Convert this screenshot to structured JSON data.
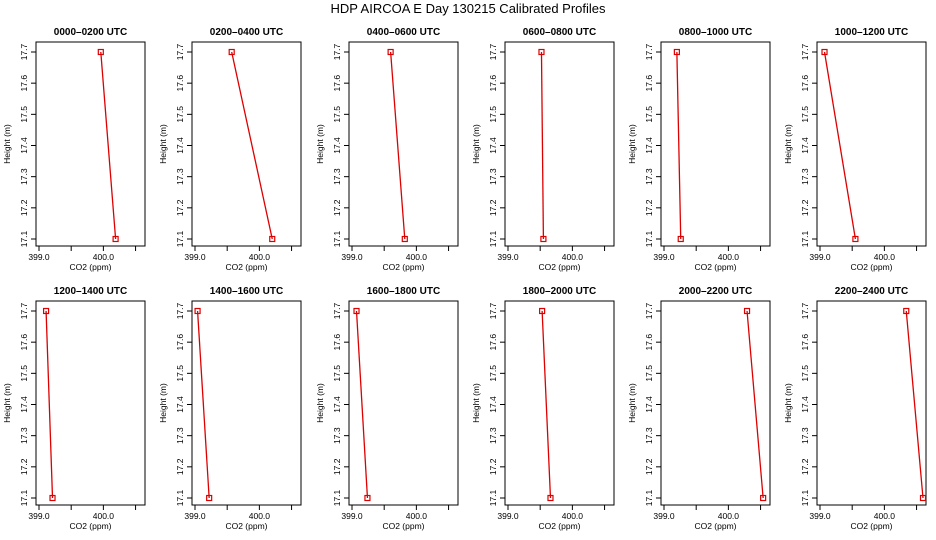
{
  "title": "HDP AIRCOA E  Day 130215  Calibrated Profiles",
  "colors": {
    "line": "#dd0000",
    "point": "#dd0000",
    "axis": "#000000"
  },
  "chart_data": [
    {
      "type": "line",
      "title": "0000–0200 UTC",
      "xlabel": "CO2 (ppm)",
      "ylabel": "Height (m)",
      "xlim": [
        399.0,
        400.6
      ],
      "ylim": [
        17.1,
        17.7
      ],
      "xticks": [
        399.0,
        400.0
      ],
      "xtick_labels": [
        "399.0",
        "400.0"
      ],
      "yticks": [
        17.1,
        17.2,
        17.3,
        17.4,
        17.5,
        17.6,
        17.7
      ],
      "ytick_labels": [
        "17.1",
        "17.2",
        "17.3",
        "17.4",
        "17.5",
        "17.6",
        "17.7"
      ],
      "series": [
        {
          "points": [
            {
              "x": 399.96,
              "y": 17.7
            },
            {
              "x": 400.19,
              "y": 17.1
            }
          ]
        }
      ]
    },
    {
      "type": "line",
      "title": "0200–0400 UTC",
      "xlabel": "CO2 (ppm)",
      "ylabel": "Height (m)",
      "xlim": [
        399.0,
        400.6
      ],
      "ylim": [
        17.1,
        17.7
      ],
      "xticks": [
        399.0,
        400.0
      ],
      "xtick_labels": [
        "399.0",
        "400.0"
      ],
      "yticks": [
        17.1,
        17.2,
        17.3,
        17.4,
        17.5,
        17.6,
        17.7
      ],
      "ytick_labels": [
        "17.1",
        "17.2",
        "17.3",
        "17.4",
        "17.5",
        "17.6",
        "17.7"
      ],
      "series": [
        {
          "points": [
            {
              "x": 399.57,
              "y": 17.7
            },
            {
              "x": 400.2,
              "y": 17.1
            }
          ]
        }
      ]
    },
    {
      "type": "line",
      "title": "0400–0600 UTC",
      "xlabel": "CO2 (ppm)",
      "ylabel": "Height (m)",
      "xlim": [
        399.0,
        400.6
      ],
      "ylim": [
        17.1,
        17.7
      ],
      "xticks": [
        399.0,
        400.0
      ],
      "xtick_labels": [
        "399.0",
        "400.0"
      ],
      "yticks": [
        17.1,
        17.2,
        17.3,
        17.4,
        17.5,
        17.6,
        17.7
      ],
      "ytick_labels": [
        "17.1",
        "17.2",
        "17.3",
        "17.4",
        "17.5",
        "17.6",
        "17.7"
      ],
      "series": [
        {
          "points": [
            {
              "x": 399.6,
              "y": 17.7
            },
            {
              "x": 399.82,
              "y": 17.1
            }
          ]
        }
      ]
    },
    {
      "type": "line",
      "title": "0600–0800 UTC",
      "xlabel": "CO2 (ppm)",
      "ylabel": "Height (m)",
      "xlim": [
        399.0,
        400.6
      ],
      "ylim": [
        17.1,
        17.7
      ],
      "xticks": [
        399.0,
        400.0
      ],
      "xtick_labels": [
        "399.0",
        "400.0"
      ],
      "yticks": [
        17.1,
        17.2,
        17.3,
        17.4,
        17.5,
        17.6,
        17.7
      ],
      "ytick_labels": [
        "17.1",
        "17.2",
        "17.3",
        "17.4",
        "17.5",
        "17.6",
        "17.7"
      ],
      "series": [
        {
          "points": [
            {
              "x": 399.52,
              "y": 17.7
            },
            {
              "x": 399.55,
              "y": 17.1
            }
          ]
        }
      ]
    },
    {
      "type": "line",
      "title": "0800–1000 UTC",
      "xlabel": "CO2 (ppm)",
      "ylabel": "Height (m)",
      "xlim": [
        399.0,
        400.6
      ],
      "ylim": [
        17.1,
        17.7
      ],
      "xticks": [
        399.0,
        400.0
      ],
      "xtick_labels": [
        "399.0",
        "400.0"
      ],
      "yticks": [
        17.1,
        17.2,
        17.3,
        17.4,
        17.5,
        17.6,
        17.7
      ],
      "ytick_labels": [
        "17.1",
        "17.2",
        "17.3",
        "17.4",
        "17.5",
        "17.6",
        "17.7"
      ],
      "series": [
        {
          "points": [
            {
              "x": 399.2,
              "y": 17.7
            },
            {
              "x": 399.26,
              "y": 17.1
            }
          ]
        }
      ]
    },
    {
      "type": "line",
      "title": "1000–1200 UTC",
      "xlabel": "CO2 (ppm)",
      "ylabel": "Height (m)",
      "xlim": [
        399.0,
        400.6
      ],
      "ylim": [
        17.1,
        17.7
      ],
      "xticks": [
        399.0,
        400.0
      ],
      "xtick_labels": [
        "399.0",
        "400.0"
      ],
      "yticks": [
        17.1,
        17.2,
        17.3,
        17.4,
        17.5,
        17.6,
        17.7
      ],
      "ytick_labels": [
        "17.1",
        "17.2",
        "17.3",
        "17.4",
        "17.5",
        "17.6",
        "17.7"
      ],
      "series": [
        {
          "points": [
            {
              "x": 399.07,
              "y": 17.7
            },
            {
              "x": 399.55,
              "y": 17.1
            }
          ]
        }
      ]
    },
    {
      "type": "line",
      "title": "1200–1400 UTC",
      "xlabel": "CO2 (ppm)",
      "ylabel": "Height (m)",
      "xlim": [
        399.0,
        400.6
      ],
      "ylim": [
        17.1,
        17.7
      ],
      "xticks": [
        399.0,
        400.0
      ],
      "xtick_labels": [
        "399.0",
        "400.0"
      ],
      "yticks": [
        17.1,
        17.2,
        17.3,
        17.4,
        17.5,
        17.6,
        17.7
      ],
      "ytick_labels": [
        "17.1",
        "17.2",
        "17.3",
        "17.4",
        "17.5",
        "17.6",
        "17.7"
      ],
      "series": [
        {
          "points": [
            {
              "x": 399.11,
              "y": 17.7
            },
            {
              "x": 399.21,
              "y": 17.1
            }
          ]
        }
      ]
    },
    {
      "type": "line",
      "title": "1400–1600 UTC",
      "xlabel": "CO2 (ppm)",
      "ylabel": "Height (m)",
      "xlim": [
        399.0,
        400.6
      ],
      "ylim": [
        17.1,
        17.7
      ],
      "xticks": [
        399.0,
        400.0
      ],
      "xtick_labels": [
        "399.0",
        "400.0"
      ],
      "yticks": [
        17.1,
        17.2,
        17.3,
        17.4,
        17.5,
        17.6,
        17.7
      ],
      "ytick_labels": [
        "17.1",
        "17.2",
        "17.3",
        "17.4",
        "17.5",
        "17.6",
        "17.7"
      ],
      "series": [
        {
          "points": [
            {
              "x": 399.04,
              "y": 17.7
            },
            {
              "x": 399.22,
              "y": 17.1
            }
          ]
        }
      ]
    },
    {
      "type": "line",
      "title": "1600–1800 UTC",
      "xlabel": "CO2 (ppm)",
      "ylabel": "Height (m)",
      "xlim": [
        399.0,
        400.6
      ],
      "ylim": [
        17.1,
        17.7
      ],
      "xticks": [
        399.0,
        400.0
      ],
      "xtick_labels": [
        "399.0",
        "400.0"
      ],
      "yticks": [
        17.1,
        17.2,
        17.3,
        17.4,
        17.5,
        17.6,
        17.7
      ],
      "ytick_labels": [
        "17.1",
        "17.2",
        "17.3",
        "17.4",
        "17.5",
        "17.6",
        "17.7"
      ],
      "series": [
        {
          "points": [
            {
              "x": 399.07,
              "y": 17.7
            },
            {
              "x": 399.24,
              "y": 17.1
            }
          ]
        }
      ]
    },
    {
      "type": "line",
      "title": "1800–2000 UTC",
      "xlabel": "CO2 (ppm)",
      "ylabel": "Height (m)",
      "xlim": [
        399.0,
        400.6
      ],
      "ylim": [
        17.1,
        17.7
      ],
      "xticks": [
        399.0,
        400.0
      ],
      "xtick_labels": [
        "399.0",
        "400.0"
      ],
      "yticks": [
        17.1,
        17.2,
        17.3,
        17.4,
        17.5,
        17.6,
        17.7
      ],
      "ytick_labels": [
        "17.1",
        "17.2",
        "17.3",
        "17.4",
        "17.5",
        "17.6",
        "17.7"
      ],
      "series": [
        {
          "points": [
            {
              "x": 399.53,
              "y": 17.7
            },
            {
              "x": 399.66,
              "y": 17.1
            }
          ]
        }
      ]
    },
    {
      "type": "line",
      "title": "2000–2200 UTC",
      "xlabel": "CO2 (ppm)",
      "ylabel": "Height (m)",
      "xlim": [
        399.0,
        400.6
      ],
      "ylim": [
        17.1,
        17.7
      ],
      "xticks": [
        399.0,
        400.0
      ],
      "xtick_labels": [
        "399.0",
        "400.0"
      ],
      "yticks": [
        17.1,
        17.2,
        17.3,
        17.4,
        17.5,
        17.6,
        17.7
      ],
      "ytick_labels": [
        "17.1",
        "17.2",
        "17.3",
        "17.4",
        "17.5",
        "17.6",
        "17.7"
      ],
      "series": [
        {
          "points": [
            {
              "x": 400.29,
              "y": 17.7
            },
            {
              "x": 400.54,
              "y": 17.1
            }
          ]
        }
      ]
    },
    {
      "type": "line",
      "title": "2200–2400 UTC",
      "xlabel": "CO2 (ppm)",
      "ylabel": "Height (m)",
      "xlim": [
        399.0,
        400.6
      ],
      "ylim": [
        17.1,
        17.7
      ],
      "xticks": [
        399.0,
        400.0
      ],
      "xtick_labels": [
        "399.0",
        "400.0"
      ],
      "yticks": [
        17.1,
        17.2,
        17.3,
        17.4,
        17.5,
        17.6,
        17.7
      ],
      "ytick_labels": [
        "17.1",
        "17.2",
        "17.3",
        "17.4",
        "17.5",
        "17.6",
        "17.7"
      ],
      "series": [
        {
          "points": [
            {
              "x": 400.34,
              "y": 17.7
            },
            {
              "x": 400.6,
              "y": 17.1
            }
          ]
        }
      ]
    }
  ]
}
